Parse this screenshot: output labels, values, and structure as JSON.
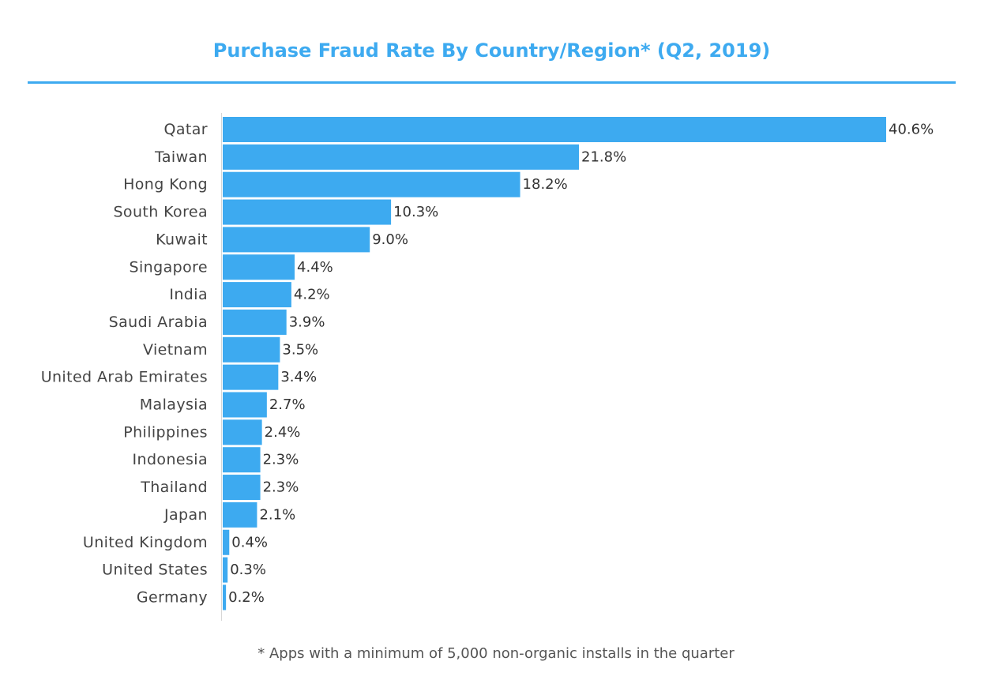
{
  "chart_data": {
    "type": "bar",
    "orientation": "horizontal",
    "title": "Purchase Fraud Rate By Country/Region* (Q2, 2019)",
    "footnote": "* Apps with a minimum of 5,000 non-organic installs in the quarter",
    "categories": [
      "Qatar",
      "Taiwan",
      "Hong Kong",
      "South Korea",
      "Kuwait",
      "Singapore",
      "India",
      "Saudi Arabia",
      "Vietnam",
      "United Arab Emirates",
      "Malaysia",
      "Philippines",
      "Indonesia",
      "Thailand",
      "Japan",
      "United Kingdom",
      "United States",
      "Germany"
    ],
    "values": [
      40.6,
      21.8,
      18.2,
      10.3,
      9.0,
      4.4,
      4.2,
      3.9,
      3.5,
      3.4,
      2.7,
      2.4,
      2.3,
      2.3,
      2.1,
      0.4,
      0.3,
      0.2
    ],
    "value_labels": [
      "40.6%",
      "21.8%",
      "18.2%",
      "10.3%",
      "9.0%",
      "4.4%",
      "4.2%",
      "3.9%",
      "3.5%",
      "3.4%",
      "2.7%",
      "2.4%",
      "2.3%",
      "2.3%",
      "2.1%",
      "0.4%",
      "0.3%",
      "0.2%"
    ],
    "xlim": [
      0,
      40.6
    ],
    "grid": false,
    "legend": "none",
    "bar_color": "#3daaf0",
    "title_color": "#3daaf0"
  }
}
